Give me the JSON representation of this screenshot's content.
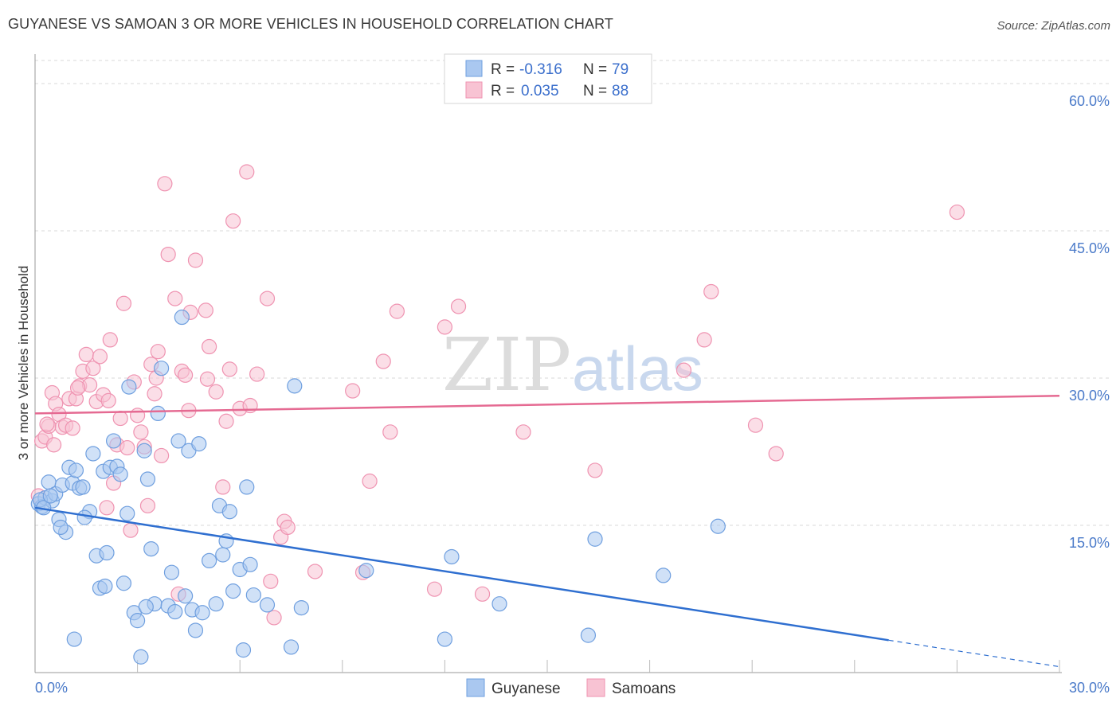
{
  "header": {
    "title": "GUYANESE VS SAMOAN 3 OR MORE VEHICLES IN HOUSEHOLD CORRELATION CHART",
    "source": "Source: ZipAtlas.com"
  },
  "watermark": {
    "zip": "ZIP",
    "atlas": "atlas"
  },
  "legend": {
    "rows": [
      {
        "r_label": "R =",
        "r_value": "-0.316",
        "n_label": "N =",
        "n_value": "79",
        "color": "#8ab4ea"
      },
      {
        "r_label": "R =",
        "r_value": "0.035",
        "n_label": "N =",
        "n_value": "88",
        "color": "#f4a6be"
      }
    ]
  },
  "bottom_legend": [
    {
      "label": "Guyanese",
      "color": "#8ab4ea"
    },
    {
      "label": "Samoans",
      "color": "#f4a6be"
    }
  ],
  "colors": {
    "guyanese_fill": "#aac8f0",
    "guyanese_stroke": "#6f9fdf",
    "guyanese_line": "#2f6fd0",
    "samoan_fill": "#f8c3d3",
    "samoan_stroke": "#ef93b1",
    "samoan_line": "#e56a92",
    "grid": "#d9d9d9",
    "axis_text": "#4a7ac9"
  },
  "chart_data": {
    "type": "scatter",
    "title": "GUYANESE VS SAMOAN 3 OR MORE VEHICLES IN HOUSEHOLD CORRELATION CHART",
    "xlabel": "",
    "ylabel": "3 or more Vehicles in Household",
    "xlim": [
      0,
      30
    ],
    "ylim": [
      0,
      63
    ],
    "x_tick_labels": [
      "0.0%",
      "30.0%"
    ],
    "y_ticks": [
      15,
      30,
      45,
      60
    ],
    "y_tick_labels": [
      "15.0%",
      "30.0%",
      "45.0%",
      "60.0%"
    ],
    "grid": true,
    "legend_position": "top-center",
    "series": [
      {
        "name": "Guyanese",
        "r": -0.316,
        "n": 79,
        "trend": {
          "x0": 0,
          "y0": 16.8,
          "x1": 25.0,
          "y1": 3.3,
          "dashed_to_x": 30.0,
          "dashed_to_y": 0.6
        },
        "points": [
          [
            0.1,
            17.2
          ],
          [
            0.2,
            16.9
          ],
          [
            0.3,
            17.8
          ],
          [
            0.4,
            19.4
          ],
          [
            0.5,
            17.5
          ],
          [
            0.6,
            18.2
          ],
          [
            0.7,
            15.6
          ],
          [
            0.8,
            19.1
          ],
          [
            0.9,
            14.3
          ],
          [
            1.0,
            20.9
          ],
          [
            1.1,
            19.3
          ],
          [
            1.2,
            20.6
          ],
          [
            1.3,
            18.8
          ],
          [
            1.4,
            18.9
          ],
          [
            1.6,
            16.4
          ],
          [
            1.7,
            22.3
          ],
          [
            1.8,
            11.9
          ],
          [
            1.9,
            8.6
          ],
          [
            2.0,
            20.5
          ],
          [
            2.1,
            12.2
          ],
          [
            2.2,
            20.9
          ],
          [
            2.3,
            23.6
          ],
          [
            2.4,
            21.0
          ],
          [
            2.5,
            20.2
          ],
          [
            2.6,
            9.1
          ],
          [
            2.7,
            16.2
          ],
          [
            2.9,
            6.1
          ],
          [
            3.0,
            5.3
          ],
          [
            3.1,
            1.6
          ],
          [
            3.2,
            22.6
          ],
          [
            3.3,
            19.7
          ],
          [
            3.4,
            12.6
          ],
          [
            3.5,
            7.0
          ],
          [
            3.6,
            26.4
          ],
          [
            3.7,
            31.0
          ],
          [
            3.9,
            6.8
          ],
          [
            4.0,
            10.2
          ],
          [
            4.1,
            6.2
          ],
          [
            4.2,
            23.6
          ],
          [
            4.3,
            36.2
          ],
          [
            4.4,
            7.8
          ],
          [
            4.5,
            22.6
          ],
          [
            4.6,
            6.4
          ],
          [
            4.7,
            4.3
          ],
          [
            4.8,
            23.3
          ],
          [
            4.9,
            6.1
          ],
          [
            5.1,
            11.4
          ],
          [
            5.3,
            7.0
          ],
          [
            5.4,
            17.0
          ],
          [
            5.5,
            12.0
          ],
          [
            5.6,
            13.4
          ],
          [
            5.7,
            16.4
          ],
          [
            5.8,
            8.3
          ],
          [
            6.0,
            10.5
          ],
          [
            6.1,
            2.3
          ],
          [
            6.2,
            18.9
          ],
          [
            6.3,
            11.0
          ],
          [
            6.4,
            7.9
          ],
          [
            6.8,
            6.9
          ],
          [
            7.5,
            2.6
          ],
          [
            7.6,
            29.2
          ],
          [
            7.8,
            6.6
          ],
          [
            9.7,
            10.4
          ],
          [
            12.0,
            3.4
          ],
          [
            12.2,
            11.8
          ],
          [
            13.6,
            7.0
          ],
          [
            16.2,
            3.8
          ],
          [
            16.4,
            13.6
          ],
          [
            18.4,
            9.9
          ],
          [
            20.0,
            14.9
          ],
          [
            0.15,
            17.6
          ],
          [
            0.25,
            16.8
          ],
          [
            0.45,
            18.0
          ],
          [
            0.75,
            14.8
          ],
          [
            1.15,
            3.4
          ],
          [
            1.45,
            15.8
          ],
          [
            2.05,
            8.8
          ],
          [
            2.75,
            29.1
          ],
          [
            3.25,
            6.7
          ]
        ]
      },
      {
        "name": "Samoans",
        "r": 0.035,
        "n": 88,
        "trend": {
          "x0": 0,
          "y0": 26.4,
          "x1": 30.0,
          "y1": 28.2
        },
        "points": [
          [
            0.1,
            18.0
          ],
          [
            0.2,
            23.6
          ],
          [
            0.3,
            24.0
          ],
          [
            0.4,
            25.1
          ],
          [
            0.5,
            28.5
          ],
          [
            0.6,
            27.4
          ],
          [
            0.7,
            26.3
          ],
          [
            0.8,
            25.0
          ],
          [
            0.9,
            25.2
          ],
          [
            1.0,
            27.9
          ],
          [
            1.1,
            24.9
          ],
          [
            1.2,
            27.9
          ],
          [
            1.3,
            29.2
          ],
          [
            1.4,
            30.7
          ],
          [
            1.5,
            32.4
          ],
          [
            1.6,
            29.3
          ],
          [
            1.7,
            31.0
          ],
          [
            1.8,
            27.6
          ],
          [
            1.9,
            32.2
          ],
          [
            2.0,
            28.3
          ],
          [
            2.1,
            16.8
          ],
          [
            2.2,
            33.9
          ],
          [
            2.3,
            19.3
          ],
          [
            2.4,
            23.2
          ],
          [
            2.5,
            25.9
          ],
          [
            2.6,
            37.6
          ],
          [
            2.7,
            22.9
          ],
          [
            2.8,
            14.5
          ],
          [
            2.9,
            29.6
          ],
          [
            3.0,
            26.2
          ],
          [
            3.1,
            24.5
          ],
          [
            3.2,
            23.0
          ],
          [
            3.3,
            17.0
          ],
          [
            3.4,
            31.4
          ],
          [
            3.5,
            28.4
          ],
          [
            3.6,
            32.7
          ],
          [
            3.7,
            22.1
          ],
          [
            3.8,
            49.8
          ],
          [
            3.9,
            42.6
          ],
          [
            4.1,
            38.1
          ],
          [
            4.2,
            8.0
          ],
          [
            4.3,
            30.7
          ],
          [
            4.4,
            30.3
          ],
          [
            4.5,
            26.7
          ],
          [
            4.7,
            42.0
          ],
          [
            5.0,
            36.9
          ],
          [
            5.1,
            33.2
          ],
          [
            5.3,
            28.6
          ],
          [
            5.5,
            18.9
          ],
          [
            5.6,
            25.6
          ],
          [
            5.7,
            30.9
          ],
          [
            5.8,
            46.0
          ],
          [
            6.0,
            26.9
          ],
          [
            6.2,
            51.0
          ],
          [
            6.3,
            27.2
          ],
          [
            6.5,
            30.4
          ],
          [
            6.8,
            38.1
          ],
          [
            6.9,
            9.3
          ],
          [
            7.0,
            5.6
          ],
          [
            7.2,
            13.8
          ],
          [
            7.3,
            15.4
          ],
          [
            7.4,
            14.8
          ],
          [
            8.2,
            10.3
          ],
          [
            9.3,
            28.7
          ],
          [
            9.6,
            10.2
          ],
          [
            9.8,
            19.5
          ],
          [
            10.2,
            31.7
          ],
          [
            10.4,
            24.5
          ],
          [
            10.6,
            36.8
          ],
          [
            11.7,
            8.5
          ],
          [
            12.0,
            35.2
          ],
          [
            12.4,
            37.3
          ],
          [
            13.1,
            8.0
          ],
          [
            14.3,
            24.5
          ],
          [
            16.4,
            20.6
          ],
          [
            19.0,
            30.8
          ],
          [
            19.6,
            33.9
          ],
          [
            19.8,
            38.8
          ],
          [
            21.1,
            25.2
          ],
          [
            21.7,
            22.3
          ],
          [
            27.0,
            46.9
          ],
          [
            0.35,
            25.3
          ],
          [
            0.55,
            23.2
          ],
          [
            1.25,
            29.0
          ],
          [
            2.15,
            27.7
          ],
          [
            3.55,
            30.0
          ],
          [
            4.55,
            36.7
          ],
          [
            5.05,
            29.9
          ]
        ]
      }
    ]
  }
}
